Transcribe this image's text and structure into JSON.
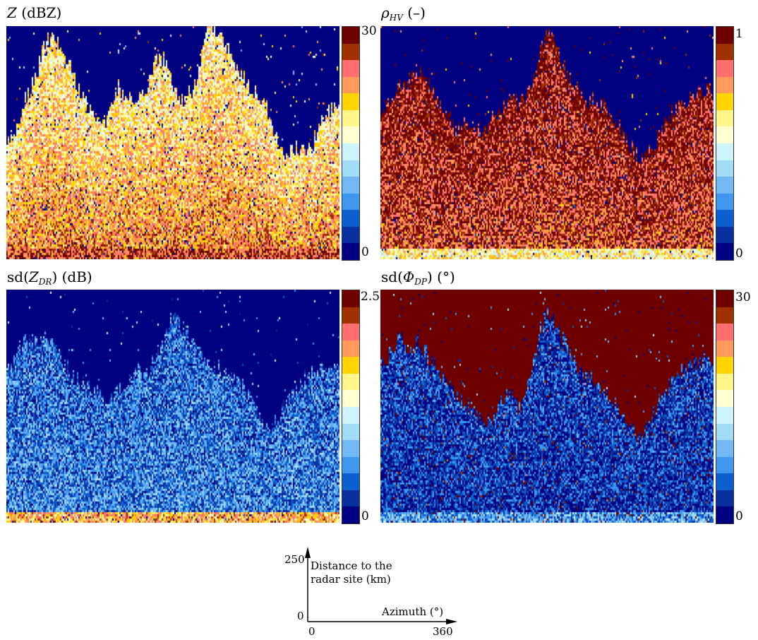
{
  "palette": [
    "#000080",
    "#0a2f9e",
    "#0b5fcf",
    "#3f97ef",
    "#72b8f5",
    "#a3dcf7",
    "#cdf3fb",
    "#ffffd2",
    "#fff58a",
    "#ffd400",
    "#ff9a5c",
    "#ff6f6f",
    "#a03000",
    "#6e0000"
  ],
  "chart_data": [
    {
      "type": "heatmap",
      "title": {
        "sym": "Z",
        "sub": "",
        "rest": " (dBZ)"
      },
      "cbar": {
        "min": 0,
        "max": 30,
        "min_label": "0",
        "max_label": "30"
      },
      "x": {
        "label": "Azimuth (°)",
        "min": 0,
        "max": 360
      },
      "y": {
        "label": "Distance to the radar site (km)",
        "min": 0,
        "max": 250
      },
      "profile": [
        120,
        140,
        175,
        190,
        230,
        240,
        225,
        205,
        175,
        160,
        150,
        150,
        185,
        175,
        165,
        180,
        215,
        215,
        185,
        170,
        180,
        215,
        255,
        240,
        225,
        200,
        190,
        175,
        165,
        130,
        115,
        120,
        118,
        122,
        155,
        160
      ],
      "stats": {
        "bg": 0,
        "inside": 18,
        "base": 24,
        "surface": 26
      }
    },
    {
      "type": "heatmap",
      "title": {
        "sym": "ρ",
        "sub": "HV",
        "rest": " (–)"
      },
      "cbar": {
        "min": 0,
        "max": 1,
        "min_label": "0",
        "max_label": "1"
      },
      "x": {
        "label": "Azimuth (°)",
        "min": 0,
        "max": 360
      },
      "y": {
        "label": "Distance to the radar site (km)",
        "min": 0,
        "max": 250
      },
      "profile": [
        150,
        175,
        185,
        190,
        200,
        195,
        170,
        160,
        140,
        145,
        140,
        135,
        150,
        160,
        175,
        165,
        180,
        215,
        245,
        225,
        200,
        185,
        170,
        170,
        165,
        150,
        140,
        120,
        105,
        115,
        130,
        150,
        165,
        170,
        175,
        180
      ],
      "stats": {
        "bg": 0,
        "inside": 0.95,
        "base": 0.85,
        "surface": 0.6
      }
    },
    {
      "type": "heatmap",
      "title": {
        "sym": "sd(",
        "symitalic": "Z",
        "sub": "DR",
        "rest": ") (dB)"
      },
      "cbar": {
        "min": 0,
        "max": 2.5,
        "min_label": "0",
        "max_label": "2.5"
      },
      "x": {
        "label": "Azimuth (°)",
        "min": 0,
        "max": 360
      },
      "y": {
        "label": "Distance to the radar site (km)",
        "min": 0,
        "max": 250
      },
      "profile": [
        160,
        180,
        200,
        195,
        200,
        190,
        175,
        160,
        150,
        145,
        140,
        130,
        145,
        150,
        165,
        160,
        175,
        200,
        225,
        210,
        195,
        180,
        170,
        165,
        160,
        150,
        140,
        120,
        100,
        110,
        125,
        140,
        155,
        160,
        165,
        170
      ],
      "stats": {
        "bg": 0.05,
        "inside": 0.5,
        "base": 0.6,
        "surface": 1.8
      }
    },
    {
      "type": "heatmap",
      "title": {
        "sym": "sd(",
        "symitalic": "Φ",
        "sub": "DP",
        "rest": ") (°)"
      },
      "cbar": {
        "min": 0,
        "max": 30,
        "min_label": "0",
        "max_label": "30"
      },
      "x": {
        "label": "Azimuth (°)",
        "min": 0,
        "max": 360
      },
      "y": {
        "label": "Distance to the radar site (km)",
        "min": 0,
        "max": 250
      },
      "profile": [
        170,
        180,
        200,
        185,
        195,
        180,
        165,
        150,
        140,
        130,
        120,
        105,
        110,
        130,
        140,
        120,
        150,
        200,
        230,
        210,
        190,
        170,
        160,
        155,
        145,
        130,
        120,
        105,
        90,
        110,
        130,
        145,
        160,
        165,
        170,
        175
      ],
      "stats": {
        "bg": 30,
        "inside": 4,
        "base": 3,
        "surface": 8
      }
    }
  ],
  "axes_key": {
    "y_max_label": "250",
    "y_min_label": "0",
    "x_min_label": "0",
    "x_max_label": "360",
    "y_label_line1": "Distance to the",
    "y_label_line2": "radar site (km)",
    "x_label": "Azimuth (°)"
  }
}
